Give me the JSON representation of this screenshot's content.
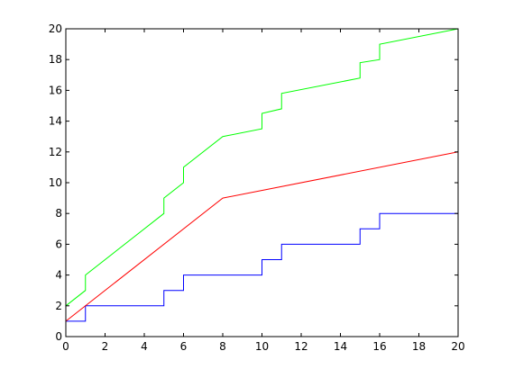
{
  "chart_data": {
    "type": "line",
    "title": "",
    "xlabel": "",
    "ylabel": "",
    "xlim": [
      0,
      20
    ],
    "ylim": [
      0,
      20
    ],
    "xticks": [
      0,
      2,
      4,
      6,
      8,
      10,
      12,
      14,
      16,
      18,
      20
    ],
    "yticks": [
      0,
      2,
      4,
      6,
      8,
      10,
      12,
      14,
      16,
      18,
      20
    ],
    "grid": false,
    "legend": "none",
    "series": [
      {
        "color": "#0000ff",
        "x": [
          0,
          1,
          1,
          5,
          5,
          6,
          6,
          10,
          10,
          11,
          11,
          15,
          15,
          16,
          16,
          20
        ],
        "y": [
          1,
          1,
          2,
          2,
          3,
          3,
          4,
          4,
          5,
          5,
          6,
          6,
          7,
          7,
          8,
          8
        ]
      },
      {
        "color": "#ff0000",
        "x": [
          0,
          8,
          20
        ],
        "y": [
          1,
          9,
          12
        ]
      },
      {
        "color": "#00ff00",
        "x": [
          0,
          1,
          1,
          5,
          5,
          6,
          6,
          8,
          10,
          10,
          11,
          11,
          15,
          15,
          16,
          16,
          20
        ],
        "y": [
          2,
          3,
          4,
          8,
          9,
          10,
          11,
          13,
          13.5,
          14.5,
          14.8,
          15.8,
          16.8,
          17.8,
          18,
          19,
          20
        ]
      }
    ]
  }
}
